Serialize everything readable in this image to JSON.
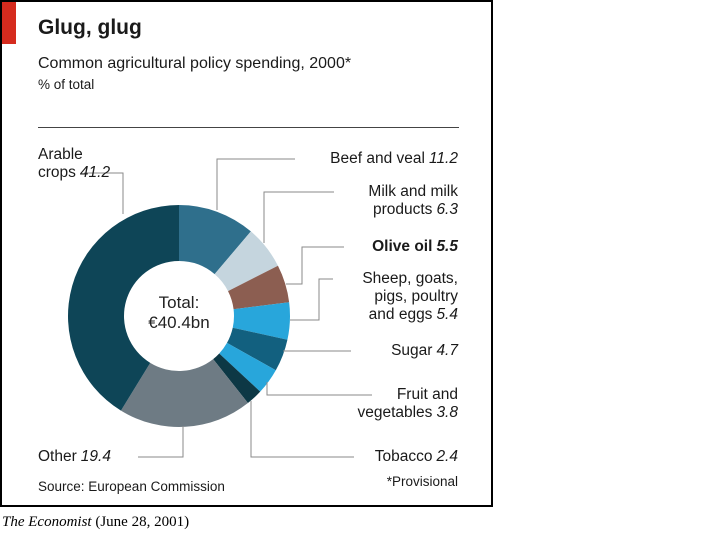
{
  "colors": {
    "accent_red": "#d52b1e",
    "leader_line": "#8a8a8a",
    "text": "#1a1a1a"
  },
  "chart_data": {
    "type": "pie",
    "subtype": "donut",
    "title": "Glug, glug",
    "subtitle": "Common agricultural policy spending, 2000*",
    "unit": "% of total",
    "start_angle_deg": 0,
    "direction": "clockwise",
    "center_label": {
      "line1": "Total:",
      "line2": "€40.4bn"
    },
    "segments": [
      {
        "id": "beef",
        "name": "Beef and veal",
        "value": 11.2,
        "color": "#2f6f8c"
      },
      {
        "id": "milk",
        "name": "Milk and milk products",
        "value": 6.3,
        "color": "#c5d5de"
      },
      {
        "id": "olive-oil",
        "name": "Olive oil",
        "value": 5.5,
        "color": "#8c5e51",
        "emphasis": true
      },
      {
        "id": "sheep",
        "name": "Sheep, goats, pigs, poultry and eggs",
        "value": 5.4,
        "color": "#28a6db"
      },
      {
        "id": "sugar",
        "name": "Sugar",
        "value": 4.7,
        "color": "#12607f"
      },
      {
        "id": "fruit",
        "name": "Fruit and vegetables",
        "value": 3.8,
        "color": "#28a6db"
      },
      {
        "id": "tobacco",
        "name": "Tobacco",
        "value": 2.4,
        "color": "#0d3845"
      },
      {
        "id": "other",
        "name": "Other",
        "value": 19.4,
        "color": "#6e7b84"
      },
      {
        "id": "arable",
        "name": "Arable crops",
        "value": 41.2,
        "color": "#0e4557"
      }
    ],
    "source": "Source: European Commission",
    "footnote": "*Provisional",
    "legend_position": "none"
  },
  "caption": {
    "publication": "The Economist",
    "date": "(June 28, 2001)"
  }
}
